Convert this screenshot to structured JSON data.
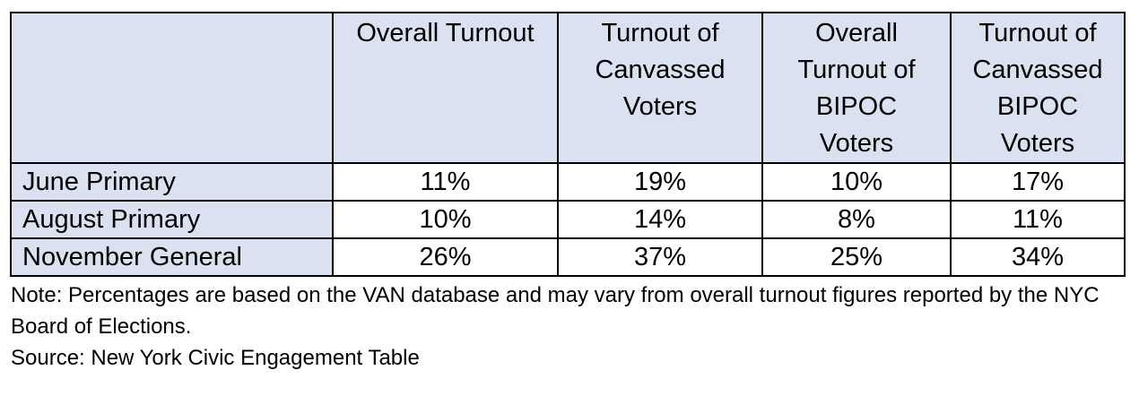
{
  "chart_data": {
    "type": "table",
    "columns": [
      "",
      "Overall Turnout",
      "Turnout of Canvassed Voters",
      "Overall Turnout of BIPOC Voters",
      "Turnout of Canvassed BIPOC Voters"
    ],
    "column_lines": [
      [],
      [
        "Overall Turnout"
      ],
      [
        "Turnout of",
        "Canvassed",
        "Voters"
      ],
      [
        "Overall",
        "Turnout of",
        "BIPOC",
        "Voters"
      ],
      [
        "Turnout of",
        "Canvassed",
        "BIPOC",
        "Voters"
      ]
    ],
    "rows": [
      {
        "label": "June Primary",
        "cells": [
          "11%",
          "19%",
          "10%",
          "17%"
        ]
      },
      {
        "label": "August Primary",
        "cells": [
          "10%",
          "14%",
          "8%",
          "11%"
        ]
      },
      {
        "label": "November General",
        "cells": [
          "26%",
          "37%",
          "25%",
          "34%"
        ]
      }
    ],
    "values": [
      [
        11,
        19,
        10,
        17
      ],
      [
        10,
        14,
        8,
        11
      ],
      [
        26,
        37,
        25,
        34
      ]
    ],
    "unit": "%",
    "header_fill": "#dae1f1"
  },
  "notes": {
    "note": "Note: Percentages are based on the VAN database and may vary from overall turnout figures reported by the NYC Board of Elections.",
    "source": "Source: New York Civic Engagement Table"
  }
}
